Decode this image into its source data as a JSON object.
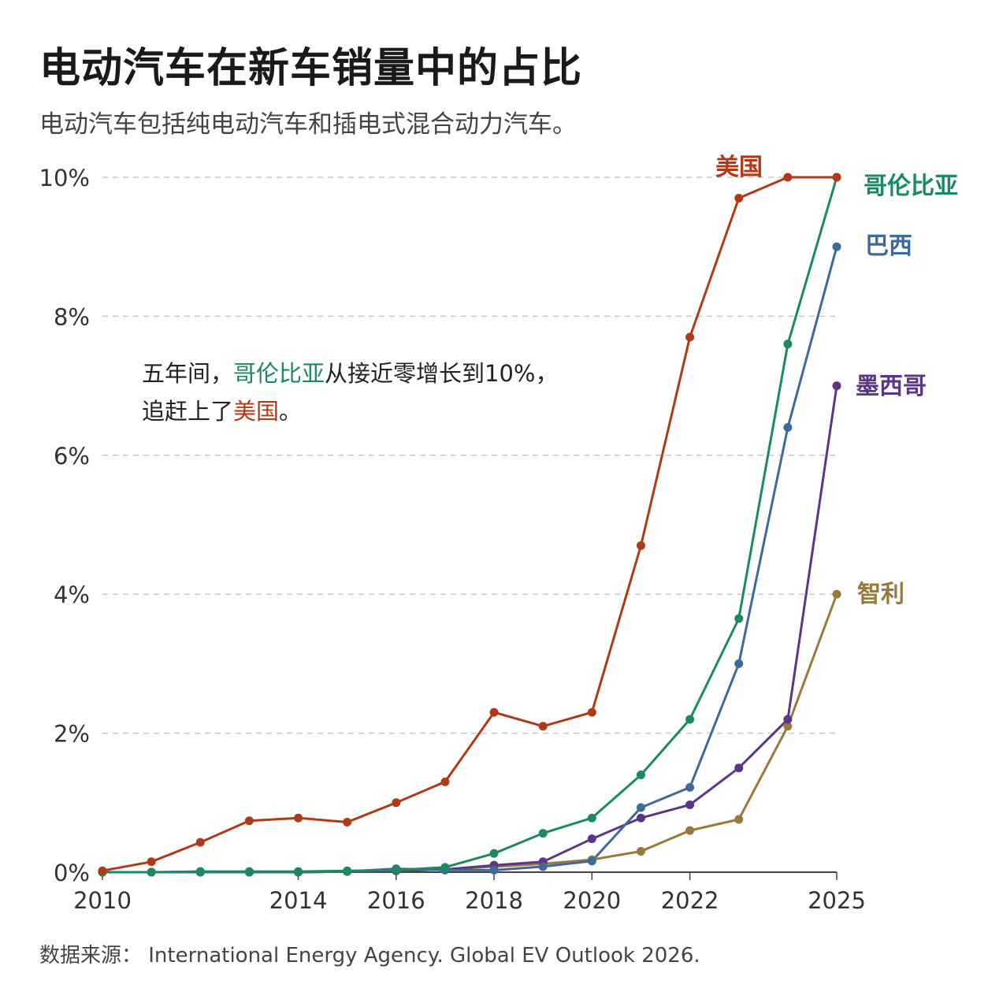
{
  "title": "电动汽车在新车销量中的占比",
  "subtitle": "电动汽车包括纯电动汽车和插电式混合动力汽车。",
  "annotation": {
    "part1": "五年间，",
    "highlight1": "哥伦比亚",
    "part2": "从接近零增长到10%，",
    "part3": "追赶上了",
    "highlight2": "美国",
    "part4": "。"
  },
  "source": "数据来源： International Energy Agency. Global EV Outlook 2026.",
  "chart_data": {
    "type": "line",
    "ylim": [
      0,
      10
    ],
    "xlim": [
      2010,
      2025
    ],
    "y_ticks": [
      0,
      2,
      4,
      6,
      8,
      10
    ],
    "y_tick_labels": [
      "0%",
      "2%",
      "4%",
      "6%",
      "8%",
      "10%"
    ],
    "x_ticks": [
      2010,
      2014,
      2016,
      2018,
      2020,
      2022,
      2025
    ],
    "x_tick_labels": [
      "2010",
      "2014",
      "2016",
      "2018",
      "2020",
      "2022",
      "2025"
    ],
    "grid": "horizontal dashed",
    "x": [
      2010,
      2011,
      2012,
      2013,
      2014,
      2015,
      2016,
      2017,
      2018,
      2019,
      2020,
      2021,
      2022,
      2023,
      2024,
      2025
    ],
    "series": [
      {
        "name": "美国",
        "color": "#b03a17",
        "values": [
          0.02,
          0.15,
          0.43,
          0.74,
          0.78,
          0.72,
          1.0,
          1.3,
          2.3,
          2.1,
          2.3,
          4.7,
          7.7,
          9.7,
          10.0,
          10.0
        ]
      },
      {
        "name": "哥伦比亚",
        "color": "#1b8a62",
        "values": [
          0.0,
          0.0,
          0.01,
          0.01,
          0.01,
          0.02,
          0.03,
          0.07,
          0.27,
          0.56,
          0.78,
          1.4,
          2.2,
          3.65,
          7.6,
          10.0
        ]
      },
      {
        "name": "巴西",
        "color": "#3e6a9a",
        "values": [
          0.0,
          0.0,
          0.0,
          0.0,
          0.0,
          0.01,
          0.05,
          0.03,
          0.03,
          0.08,
          0.16,
          0.93,
          1.22,
          3.0,
          6.4,
          9.0
        ]
      },
      {
        "name": "墨西哥",
        "color": "#5b3687",
        "values": [
          0.0,
          0.0,
          0.0,
          0.0,
          0.0,
          0.01,
          0.02,
          0.04,
          0.1,
          0.15,
          0.48,
          0.78,
          0.97,
          1.5,
          2.2,
          7.0
        ]
      },
      {
        "name": "智利",
        "color": "#9a7a3a",
        "values": [
          0.0,
          0.0,
          0.0,
          0.0,
          0.0,
          0.01,
          0.02,
          0.04,
          0.08,
          0.12,
          0.18,
          0.3,
          0.6,
          0.76,
          2.1,
          4.0
        ]
      }
    ]
  }
}
